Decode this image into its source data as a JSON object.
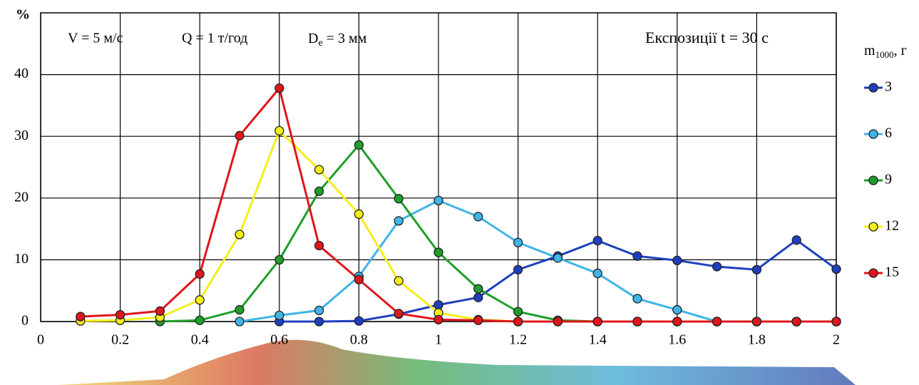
{
  "chart_data": {
    "type": "line",
    "y_label": "%",
    "annotations": [
      {
        "text": "V = 5 м/с"
      },
      {
        "text": "Q = 1 т/год"
      },
      {
        "parts": [
          "D",
          "e",
          " = 3 мм"
        ]
      },
      {
        "text": "Експозиції t = 30 с"
      }
    ],
    "legend_title": [
      "m",
      "1000",
      ", г"
    ],
    "x": [
      0.1,
      0.2,
      0.3,
      0.4,
      0.5,
      0.6,
      0.7,
      0.8,
      0.9,
      1.0,
      1.1,
      1.2,
      1.3,
      1.4,
      1.5,
      1.6,
      1.7,
      1.8,
      1.9,
      2.0
    ],
    "series": [
      {
        "name": "3",
        "color": "#1f3fbf",
        "values": [
          null,
          null,
          null,
          null,
          null,
          0,
          0,
          0.1,
          1.2,
          2.7,
          3.9,
          8.4,
          10.6,
          13.1,
          10.6,
          9.9,
          8.9,
          8.4,
          13.2,
          8.5
        ]
      },
      {
        "name": "6",
        "color": "#3fb4e8",
        "values": [
          null,
          null,
          null,
          null,
          0,
          1.0,
          1.8,
          7.3,
          16.3,
          19.6,
          17.0,
          12.8,
          10.3,
          7.8,
          3.7,
          1.9,
          0,
          0,
          0,
          0
        ]
      },
      {
        "name": "9",
        "color": "#1e9e2a",
        "values": [
          null,
          null,
          0,
          0.2,
          1.9,
          10.0,
          21.1,
          28.6,
          19.9,
          11.2,
          5.3,
          1.6,
          0.2,
          0,
          0,
          0,
          0,
          0,
          0,
          0
        ]
      },
      {
        "name": "12",
        "color": "#f5ee1a",
        "values": [
          0.1,
          0.2,
          0.7,
          3.5,
          14.1,
          30.9,
          24.6,
          17.4,
          6.6,
          1.4,
          0.3,
          0,
          0,
          0,
          0,
          0,
          0,
          0,
          0,
          0
        ]
      },
      {
        "name": "15",
        "color": "#e0161b",
        "values": [
          0.8,
          1.1,
          1.7,
          7.7,
          30.1,
          37.8,
          12.3,
          6.8,
          1.3,
          0.3,
          0.2,
          0,
          0,
          0,
          0,
          0,
          0,
          0,
          0,
          0
        ]
      }
    ],
    "xlim": [
      0,
      2
    ],
    "ylim": [
      0,
      50
    ],
    "xticks": [
      0,
      0.2,
      0.4,
      0.6,
      0.8,
      1,
      1.2,
      1.4,
      1.6,
      1.8,
      2
    ],
    "yticks": [
      0,
      10,
      20,
      30,
      40
    ],
    "grid": true
  }
}
